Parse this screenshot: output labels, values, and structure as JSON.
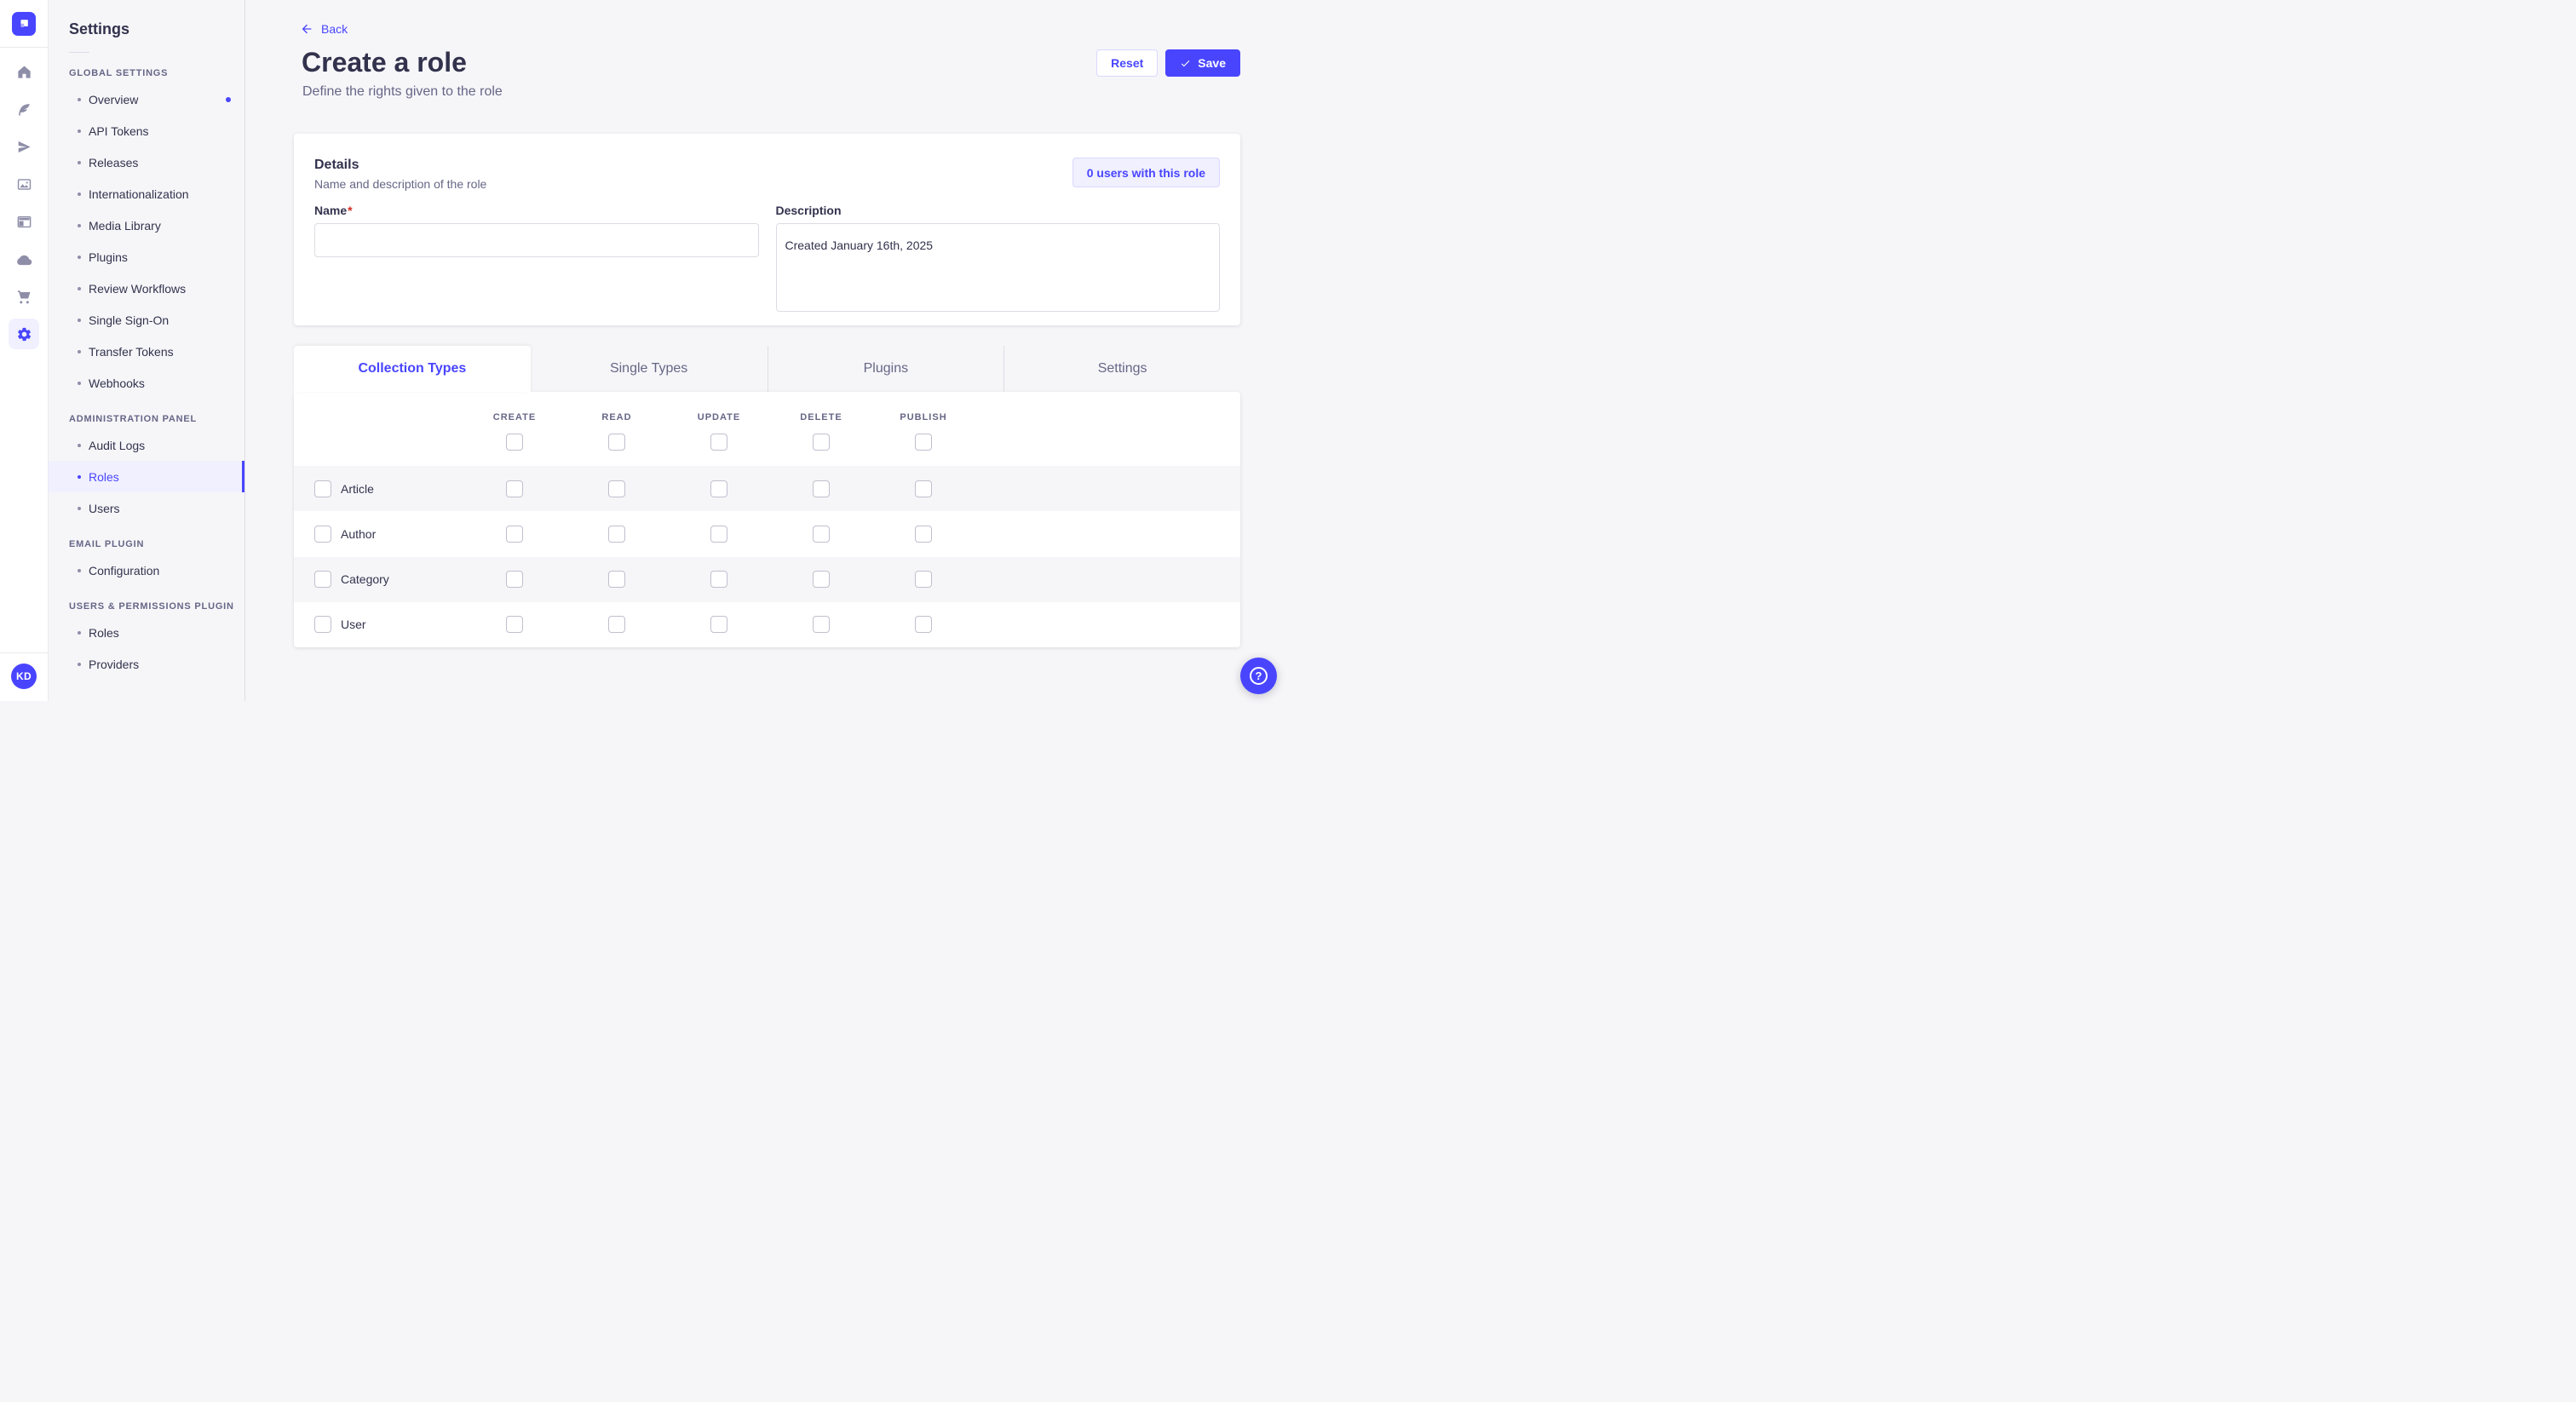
{
  "rail": {
    "logo": "strapi-logo",
    "icons": [
      {
        "name": "home-icon",
        "active": false
      },
      {
        "name": "content-manager-icon",
        "active": false
      },
      {
        "name": "deploy-icon",
        "active": false
      },
      {
        "name": "media-library-icon",
        "active": false
      },
      {
        "name": "content-type-builder-icon",
        "active": false
      },
      {
        "name": "cloud-icon",
        "active": false
      },
      {
        "name": "marketplace-icon",
        "active": false
      },
      {
        "name": "settings-icon",
        "active": true
      }
    ],
    "avatar_initials": "KD"
  },
  "sidebar": {
    "title": "Settings",
    "sections": [
      {
        "label": "GLOBAL SETTINGS",
        "items": [
          {
            "label": "Overview",
            "notification": true
          },
          {
            "label": "API Tokens"
          },
          {
            "label": "Releases"
          },
          {
            "label": "Internationalization"
          },
          {
            "label": "Media Library"
          },
          {
            "label": "Plugins"
          },
          {
            "label": "Review Workflows"
          },
          {
            "label": "Single Sign-On"
          },
          {
            "label": "Transfer Tokens"
          },
          {
            "label": "Webhooks"
          }
        ]
      },
      {
        "label": "ADMINISTRATION PANEL",
        "items": [
          {
            "label": "Audit Logs"
          },
          {
            "label": "Roles",
            "active": true
          },
          {
            "label": "Users"
          }
        ]
      },
      {
        "label": "EMAIL PLUGIN",
        "items": [
          {
            "label": "Configuration"
          }
        ]
      },
      {
        "label": "USERS & PERMISSIONS PLUGIN",
        "items": [
          {
            "label": "Roles"
          },
          {
            "label": "Providers"
          }
        ]
      }
    ]
  },
  "header": {
    "back": "Back",
    "title": "Create a role",
    "subtitle": "Define the rights given to the role",
    "reset": "Reset",
    "save": "Save"
  },
  "details": {
    "title": "Details",
    "subtitle": "Name and description of the role",
    "users_badge": "0 users with this role",
    "name_label": "Name",
    "required": "*",
    "name_value": "",
    "description_label": "Description",
    "description_value": "Created January 16th, 2025"
  },
  "permissions": {
    "tabs": [
      {
        "label": "Collection Types",
        "active": true
      },
      {
        "label": "Single Types",
        "active": false
      },
      {
        "label": "Plugins",
        "active": false
      },
      {
        "label": "Settings",
        "active": false
      }
    ],
    "columns": [
      "CREATE",
      "READ",
      "UPDATE",
      "DELETE",
      "PUBLISH"
    ],
    "header_checkboxes": [
      false,
      false,
      false,
      false,
      false
    ],
    "rows": [
      {
        "label": "Article",
        "row_checked": false,
        "checks": [
          false,
          false,
          false,
          false,
          false
        ]
      },
      {
        "label": "Author",
        "row_checked": false,
        "checks": [
          false,
          false,
          false,
          false,
          false
        ]
      },
      {
        "label": "Category",
        "row_checked": false,
        "checks": [
          false,
          false,
          false,
          false,
          false
        ]
      },
      {
        "label": "User",
        "row_checked": false,
        "checks": [
          false,
          false,
          false,
          false,
          false
        ]
      }
    ]
  },
  "help": {
    "glyph": "?"
  },
  "colors": {
    "primary": "#4945FF",
    "primary_light": "#F0F0FF",
    "primary_border": "#D9D8FF",
    "text_dark": "#32324D",
    "text_gray": "#666687",
    "page_bg": "#F6F6F9",
    "border": "#DCDCE4",
    "checkbox_border": "#C0C0CF",
    "required_red": "#D02B20"
  }
}
